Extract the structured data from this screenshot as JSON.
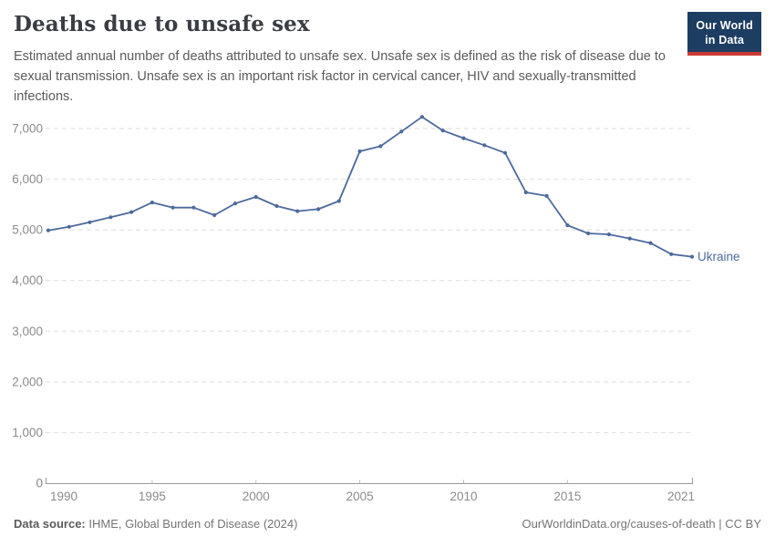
{
  "header": {
    "title": "Deaths due to unsafe sex",
    "subtitle": "Estimated annual number of deaths attributed to unsafe sex. Unsafe sex is defined as the risk of disease due to sexual transmission. Unsafe sex is an important risk factor in cervical cancer, HIV and sexually-transmitted infections.",
    "logo": {
      "line1": "Our World",
      "line2": "in Data"
    }
  },
  "chart_data": {
    "type": "line",
    "title": "Deaths due to unsafe sex",
    "xlabel": "",
    "ylabel": "",
    "xlim": [
      1990,
      2021
    ],
    "ylim": [
      0,
      7000
    ],
    "grid": "horizontal-dashed",
    "legend_position": "end-of-line-label",
    "colors": {
      "line": "#4c6a9c",
      "gridline": "#dedede",
      "axis": "#9a9a9a",
      "tick_label": "#8b8b8b"
    },
    "yticks": [
      {
        "value": 0,
        "label": "0"
      },
      {
        "value": 1000,
        "label": "1,000"
      },
      {
        "value": 2000,
        "label": "2,000"
      },
      {
        "value": 3000,
        "label": "3,000"
      },
      {
        "value": 4000,
        "label": "4,000"
      },
      {
        "value": 5000,
        "label": "5,000"
      },
      {
        "value": 6000,
        "label": "6,000"
      },
      {
        "value": 7000,
        "label": "7,000"
      }
    ],
    "xticks": [
      {
        "value": 1990,
        "label": "1990"
      },
      {
        "value": 1995,
        "label": "1995"
      },
      {
        "value": 2000,
        "label": "2000"
      },
      {
        "value": 2005,
        "label": "2005"
      },
      {
        "value": 2010,
        "label": "2010"
      },
      {
        "value": 2015,
        "label": "2015"
      },
      {
        "value": 2021,
        "label": "2021"
      }
    ],
    "series": [
      {
        "name": "Ukraine",
        "color": "#4c6a9c",
        "x": [
          1990,
          1991,
          1992,
          1993,
          1994,
          1995,
          1996,
          1997,
          1998,
          1999,
          2000,
          2001,
          2002,
          2003,
          2004,
          2005,
          2006,
          2007,
          2008,
          2009,
          2010,
          2011,
          2012,
          2013,
          2014,
          2015,
          2016,
          2017,
          2018,
          2019,
          2020,
          2021
        ],
        "values": [
          4990,
          5060,
          5150,
          5250,
          5350,
          5540,
          5440,
          5440,
          5290,
          5520,
          5650,
          5470,
          5370,
          5410,
          5570,
          6550,
          6650,
          6940,
          7230,
          6960,
          6810,
          6670,
          6520,
          5740,
          5670,
          5090,
          4930,
          4910,
          4830,
          4740,
          4520,
          4470
        ]
      }
    ]
  },
  "footer": {
    "source_label": "Data source:",
    "source_text": "IHME, Global Burden of Disease (2024)",
    "link_text": "OurWorldinData.org/causes-of-death | CC BY"
  }
}
